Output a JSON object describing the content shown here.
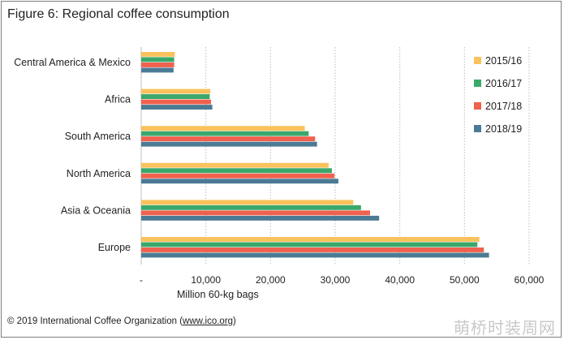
{
  "title": "Figure 6: Regional coffee consumption",
  "copyright": {
    "prefix": "© 2019 International Coffee Organization (",
    "link": "www.ico.org",
    "suffix": ")"
  },
  "watermark": "萌桥时装周网",
  "chart_data": {
    "type": "bar",
    "orientation": "horizontal",
    "title": "Figure 6: Regional coffee consumption",
    "xlabel": "Million 60-kg bags",
    "ylabel": "",
    "xlim": [
      0,
      60000
    ],
    "xticks": [
      {
        "value": 0,
        "label": "-"
      },
      {
        "value": 10000,
        "label": "10,000"
      },
      {
        "value": 20000,
        "label": "20,000"
      },
      {
        "value": 30000,
        "label": "30,000"
      },
      {
        "value": 40000,
        "label": "40,000"
      },
      {
        "value": 50000,
        "label": "50,000"
      },
      {
        "value": 60000,
        "label": "60,000"
      }
    ],
    "grid": "vertical-dotted",
    "legend_position": "right",
    "categories": [
      "Central America & Mexico",
      "Africa",
      "South America",
      "North America",
      "Asia & Oceania",
      "Europe"
    ],
    "series": [
      {
        "name": "2015/16",
        "color": "#f9c25c",
        "values": [
          5200,
          10700,
          25300,
          29000,
          32800,
          52300
        ]
      },
      {
        "name": "2016/17",
        "color": "#3aa86b",
        "values": [
          5100,
          10600,
          25900,
          29500,
          34000,
          52000
        ]
      },
      {
        "name": "2017/18",
        "color": "#f0614e",
        "values": [
          5100,
          10800,
          26900,
          29900,
          35400,
          53000
        ]
      },
      {
        "name": "2018/19",
        "color": "#4b7a94",
        "values": [
          5000,
          11000,
          27200,
          30500,
          36800,
          53800
        ]
      }
    ]
  }
}
